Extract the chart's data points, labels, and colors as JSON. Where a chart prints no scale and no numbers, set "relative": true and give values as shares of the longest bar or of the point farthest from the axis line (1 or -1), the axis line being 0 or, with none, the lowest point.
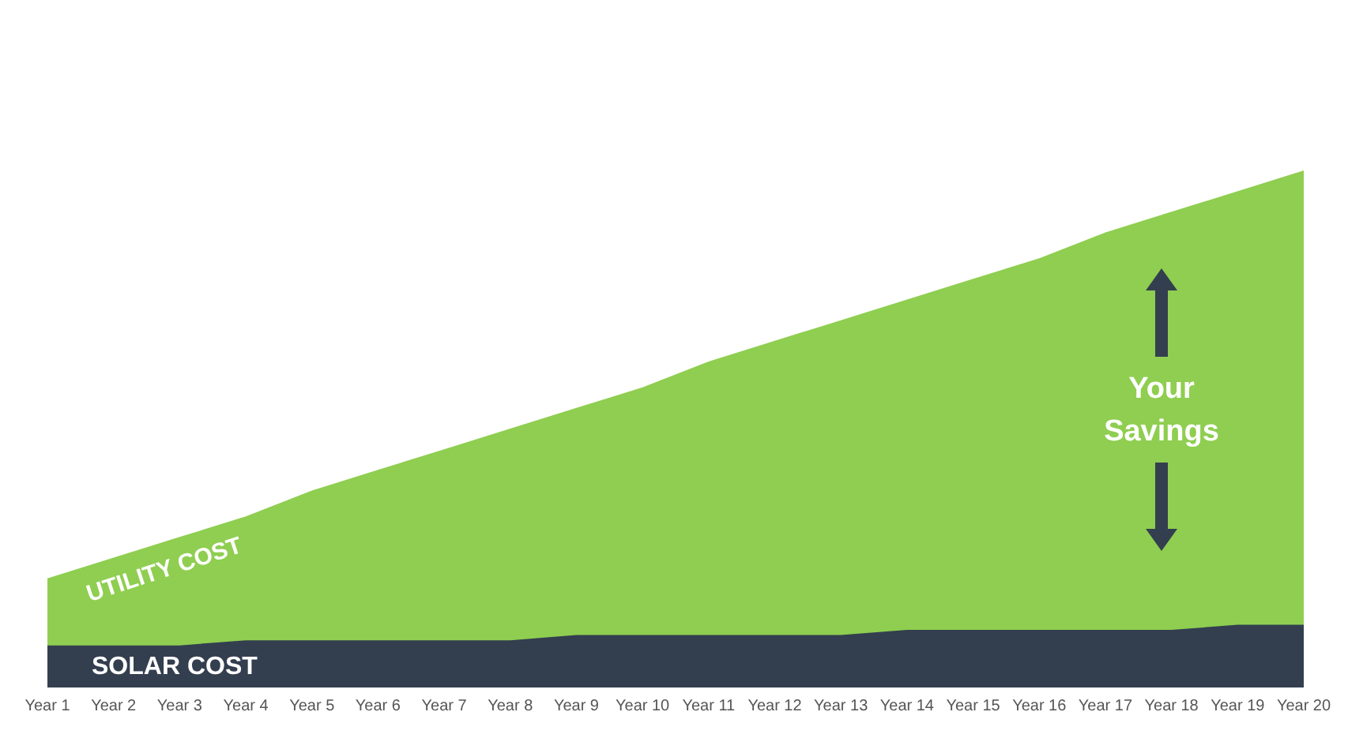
{
  "chart_data": {
    "type": "area",
    "relative": true,
    "categories": [
      "Year 1",
      "Year 2",
      "Year 3",
      "Year 4",
      "Year 5",
      "Year 6",
      "Year 7",
      "Year 8",
      "Year 9",
      "Year 10",
      "Year 11",
      "Year 12",
      "Year 13",
      "Year 14",
      "Year 15",
      "Year 16",
      "Year 17",
      "Year 18",
      "Year 19",
      "Year 20"
    ],
    "series": [
      {
        "name": "UTILITY COST",
        "color": "#8fce50",
        "values": [
          0.21,
          0.25,
          0.29,
          0.33,
          0.38,
          0.42,
          0.46,
          0.5,
          0.54,
          0.58,
          0.63,
          0.67,
          0.71,
          0.75,
          0.79,
          0.83,
          0.88,
          0.92,
          0.96,
          1.0
        ]
      },
      {
        "name": "SOLAR COST",
        "color": "#333f4f",
        "values": [
          0.08,
          0.08,
          0.08,
          0.09,
          0.09,
          0.09,
          0.09,
          0.09,
          0.1,
          0.1,
          0.1,
          0.1,
          0.1,
          0.11,
          0.11,
          0.11,
          0.11,
          0.11,
          0.12,
          0.12
        ]
      }
    ],
    "annotations": [
      "Your Savings"
    ]
  }
}
